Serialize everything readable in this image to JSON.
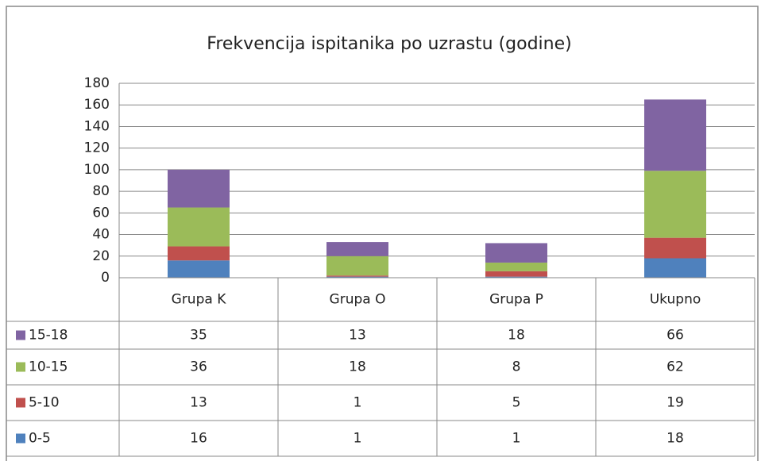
{
  "chart_data": {
    "type": "stacked_bar",
    "title": "Frekvencija ispitanika po uzrastu (godine)",
    "categories": [
      "Grupa K",
      "Grupa O",
      "Grupa P",
      "Ukupno"
    ],
    "series": [
      {
        "name": "0-5",
        "color": "#4f81bd",
        "values": [
          16,
          1,
          1,
          18
        ]
      },
      {
        "name": "5-10",
        "color": "#c0504d",
        "values": [
          13,
          1,
          5,
          19
        ]
      },
      {
        "name": "10-15",
        "color": "#9bbb59",
        "values": [
          36,
          18,
          8,
          62
        ]
      },
      {
        "name": "15-18",
        "color": "#8064a2",
        "values": [
          35,
          13,
          18,
          66
        ]
      }
    ],
    "ylim": [
      0,
      180
    ],
    "yticks": [
      0,
      20,
      40,
      60,
      80,
      100,
      120,
      140,
      160,
      180
    ],
    "grid": true,
    "data_table": true
  }
}
